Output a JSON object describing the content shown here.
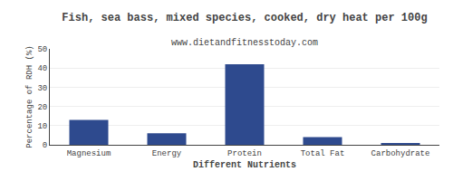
{
  "chart_data": {
    "type": "bar",
    "title": "Fish, sea bass, mixed species, cooked, dry heat per 100g",
    "subtitle": "www.dietandfitnesstoday.com",
    "xlabel": "Different Nutrients",
    "ylabel": "Percentage of RDH (%)",
    "categories": [
      "Magnesium",
      "Energy",
      "Protein",
      "Total Fat",
      "Carbohydrate"
    ],
    "values": [
      13,
      6,
      42,
      4,
      0.5
    ],
    "color": "#2e4a8e",
    "ylim": [
      0,
      50
    ],
    "yticks": [
      0,
      10,
      20,
      30,
      40,
      50
    ],
    "grid": true
  }
}
